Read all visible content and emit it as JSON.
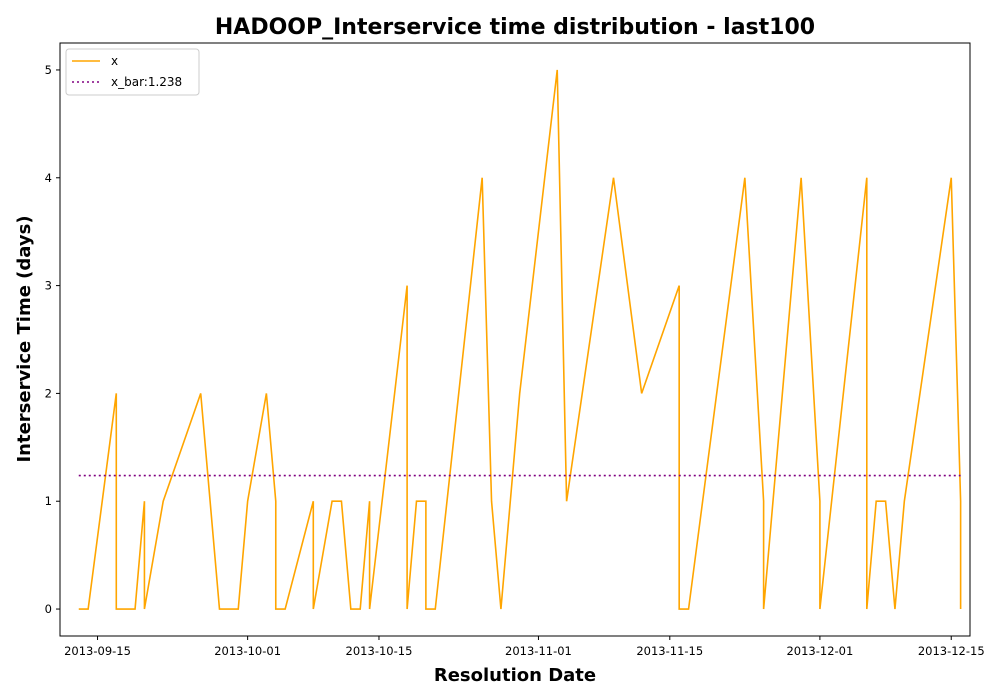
{
  "chart_data": {
    "type": "line",
    "title": "HADOOP_Interservice time distribution - last100",
    "xlabel": "Resolution Date",
    "ylabel": "Interservice Time (days)",
    "x_ticks": [
      "2013-09-15",
      "2013-10-01",
      "2013-10-15",
      "2013-11-01",
      "2013-11-15",
      "2013-12-01",
      "2013-12-15"
    ],
    "y_ticks": [
      "0",
      "1",
      "2",
      "3",
      "4",
      "5"
    ],
    "xlim": [
      "2013-09-11",
      "2013-12-17"
    ],
    "ylim": [
      -0.25,
      5.25
    ],
    "grid": false,
    "legend_position": "top-left",
    "series": [
      {
        "name": "x",
        "color": "#ffa500",
        "style": "solid",
        "points": [
          [
            "2013-09-13",
            0
          ],
          [
            "2013-09-14",
            0
          ],
          [
            "2013-09-17",
            2
          ],
          [
            "2013-09-17",
            0
          ],
          [
            "2013-09-19",
            0
          ],
          [
            "2013-09-20",
            1
          ],
          [
            "2013-09-20",
            0
          ],
          [
            "2013-09-22",
            1
          ],
          [
            "2013-09-26",
            2
          ],
          [
            "2013-09-27",
            1
          ],
          [
            "2013-09-28",
            0
          ],
          [
            "2013-09-30",
            0
          ],
          [
            "2013-10-01",
            1
          ],
          [
            "2013-10-03",
            2
          ],
          [
            "2013-10-04",
            1
          ],
          [
            "2013-10-04",
            0
          ],
          [
            "2013-10-05",
            0
          ],
          [
            "2013-10-08",
            1
          ],
          [
            "2013-10-08",
            0
          ],
          [
            "2013-10-10",
            1
          ],
          [
            "2013-10-11",
            1
          ],
          [
            "2013-10-12",
            0
          ],
          [
            "2013-10-13",
            0
          ],
          [
            "2013-10-14",
            1
          ],
          [
            "2013-10-14",
            0
          ],
          [
            "2013-10-18",
            3
          ],
          [
            "2013-10-18",
            0
          ],
          [
            "2013-10-19",
            1
          ],
          [
            "2013-10-20",
            1
          ],
          [
            "2013-10-20",
            0
          ],
          [
            "2013-10-21",
            0
          ],
          [
            "2013-10-26",
            4
          ],
          [
            "2013-10-27",
            1
          ],
          [
            "2013-10-28",
            0
          ],
          [
            "2013-10-28",
            0
          ],
          [
            "2013-10-30",
            2
          ],
          [
            "2013-11-03",
            5
          ],
          [
            "2013-11-04",
            1
          ],
          [
            "2013-11-09",
            4
          ],
          [
            "2013-11-12",
            2
          ],
          [
            "2013-11-16",
            3
          ],
          [
            "2013-11-16",
            0
          ],
          [
            "2013-11-17",
            0
          ],
          [
            "2013-11-23",
            4
          ],
          [
            "2013-11-25",
            1
          ],
          [
            "2013-11-25",
            0
          ],
          [
            "2013-11-29",
            4
          ],
          [
            "2013-12-01",
            1
          ],
          [
            "2013-12-01",
            0
          ],
          [
            "2013-12-06",
            4
          ],
          [
            "2013-12-06",
            0
          ],
          [
            "2013-12-07",
            1
          ],
          [
            "2013-12-08",
            1
          ],
          [
            "2013-12-09",
            0
          ],
          [
            "2013-12-10",
            1
          ],
          [
            "2013-12-15",
            4
          ],
          [
            "2013-12-16",
            1
          ],
          [
            "2013-12-16",
            0
          ]
        ]
      },
      {
        "name": "x_bar:1.238",
        "color": "#800080",
        "style": "dotted",
        "points": [
          [
            "2013-09-13",
            1.238
          ],
          [
            "2013-12-16",
            1.238
          ]
        ]
      }
    ]
  }
}
